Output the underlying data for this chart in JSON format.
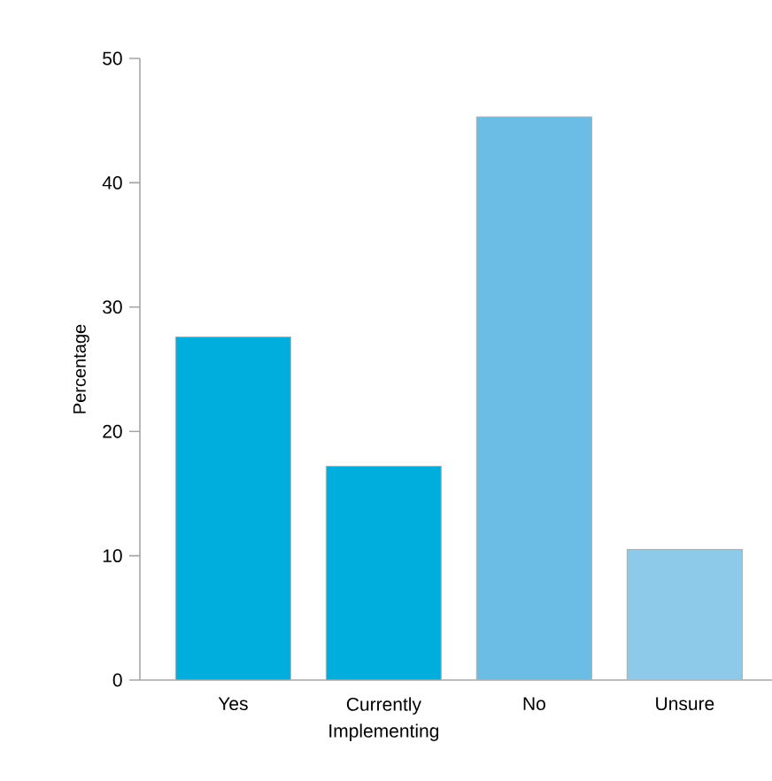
{
  "chart_data": {
    "type": "bar",
    "ylabel": "Percentage",
    "categories": [
      "Yes",
      "Currently Implementing",
      "No",
      "Unsure"
    ],
    "values": [
      27.6,
      17.2,
      45.3,
      10.5
    ],
    "colors": [
      "#00aedd",
      "#00aedd",
      "#6cbde6",
      "#8dcaea"
    ],
    "ylim": [
      0,
      50
    ],
    "yticks": [
      0,
      10,
      20,
      30,
      40,
      50
    ],
    "grid": false
  }
}
